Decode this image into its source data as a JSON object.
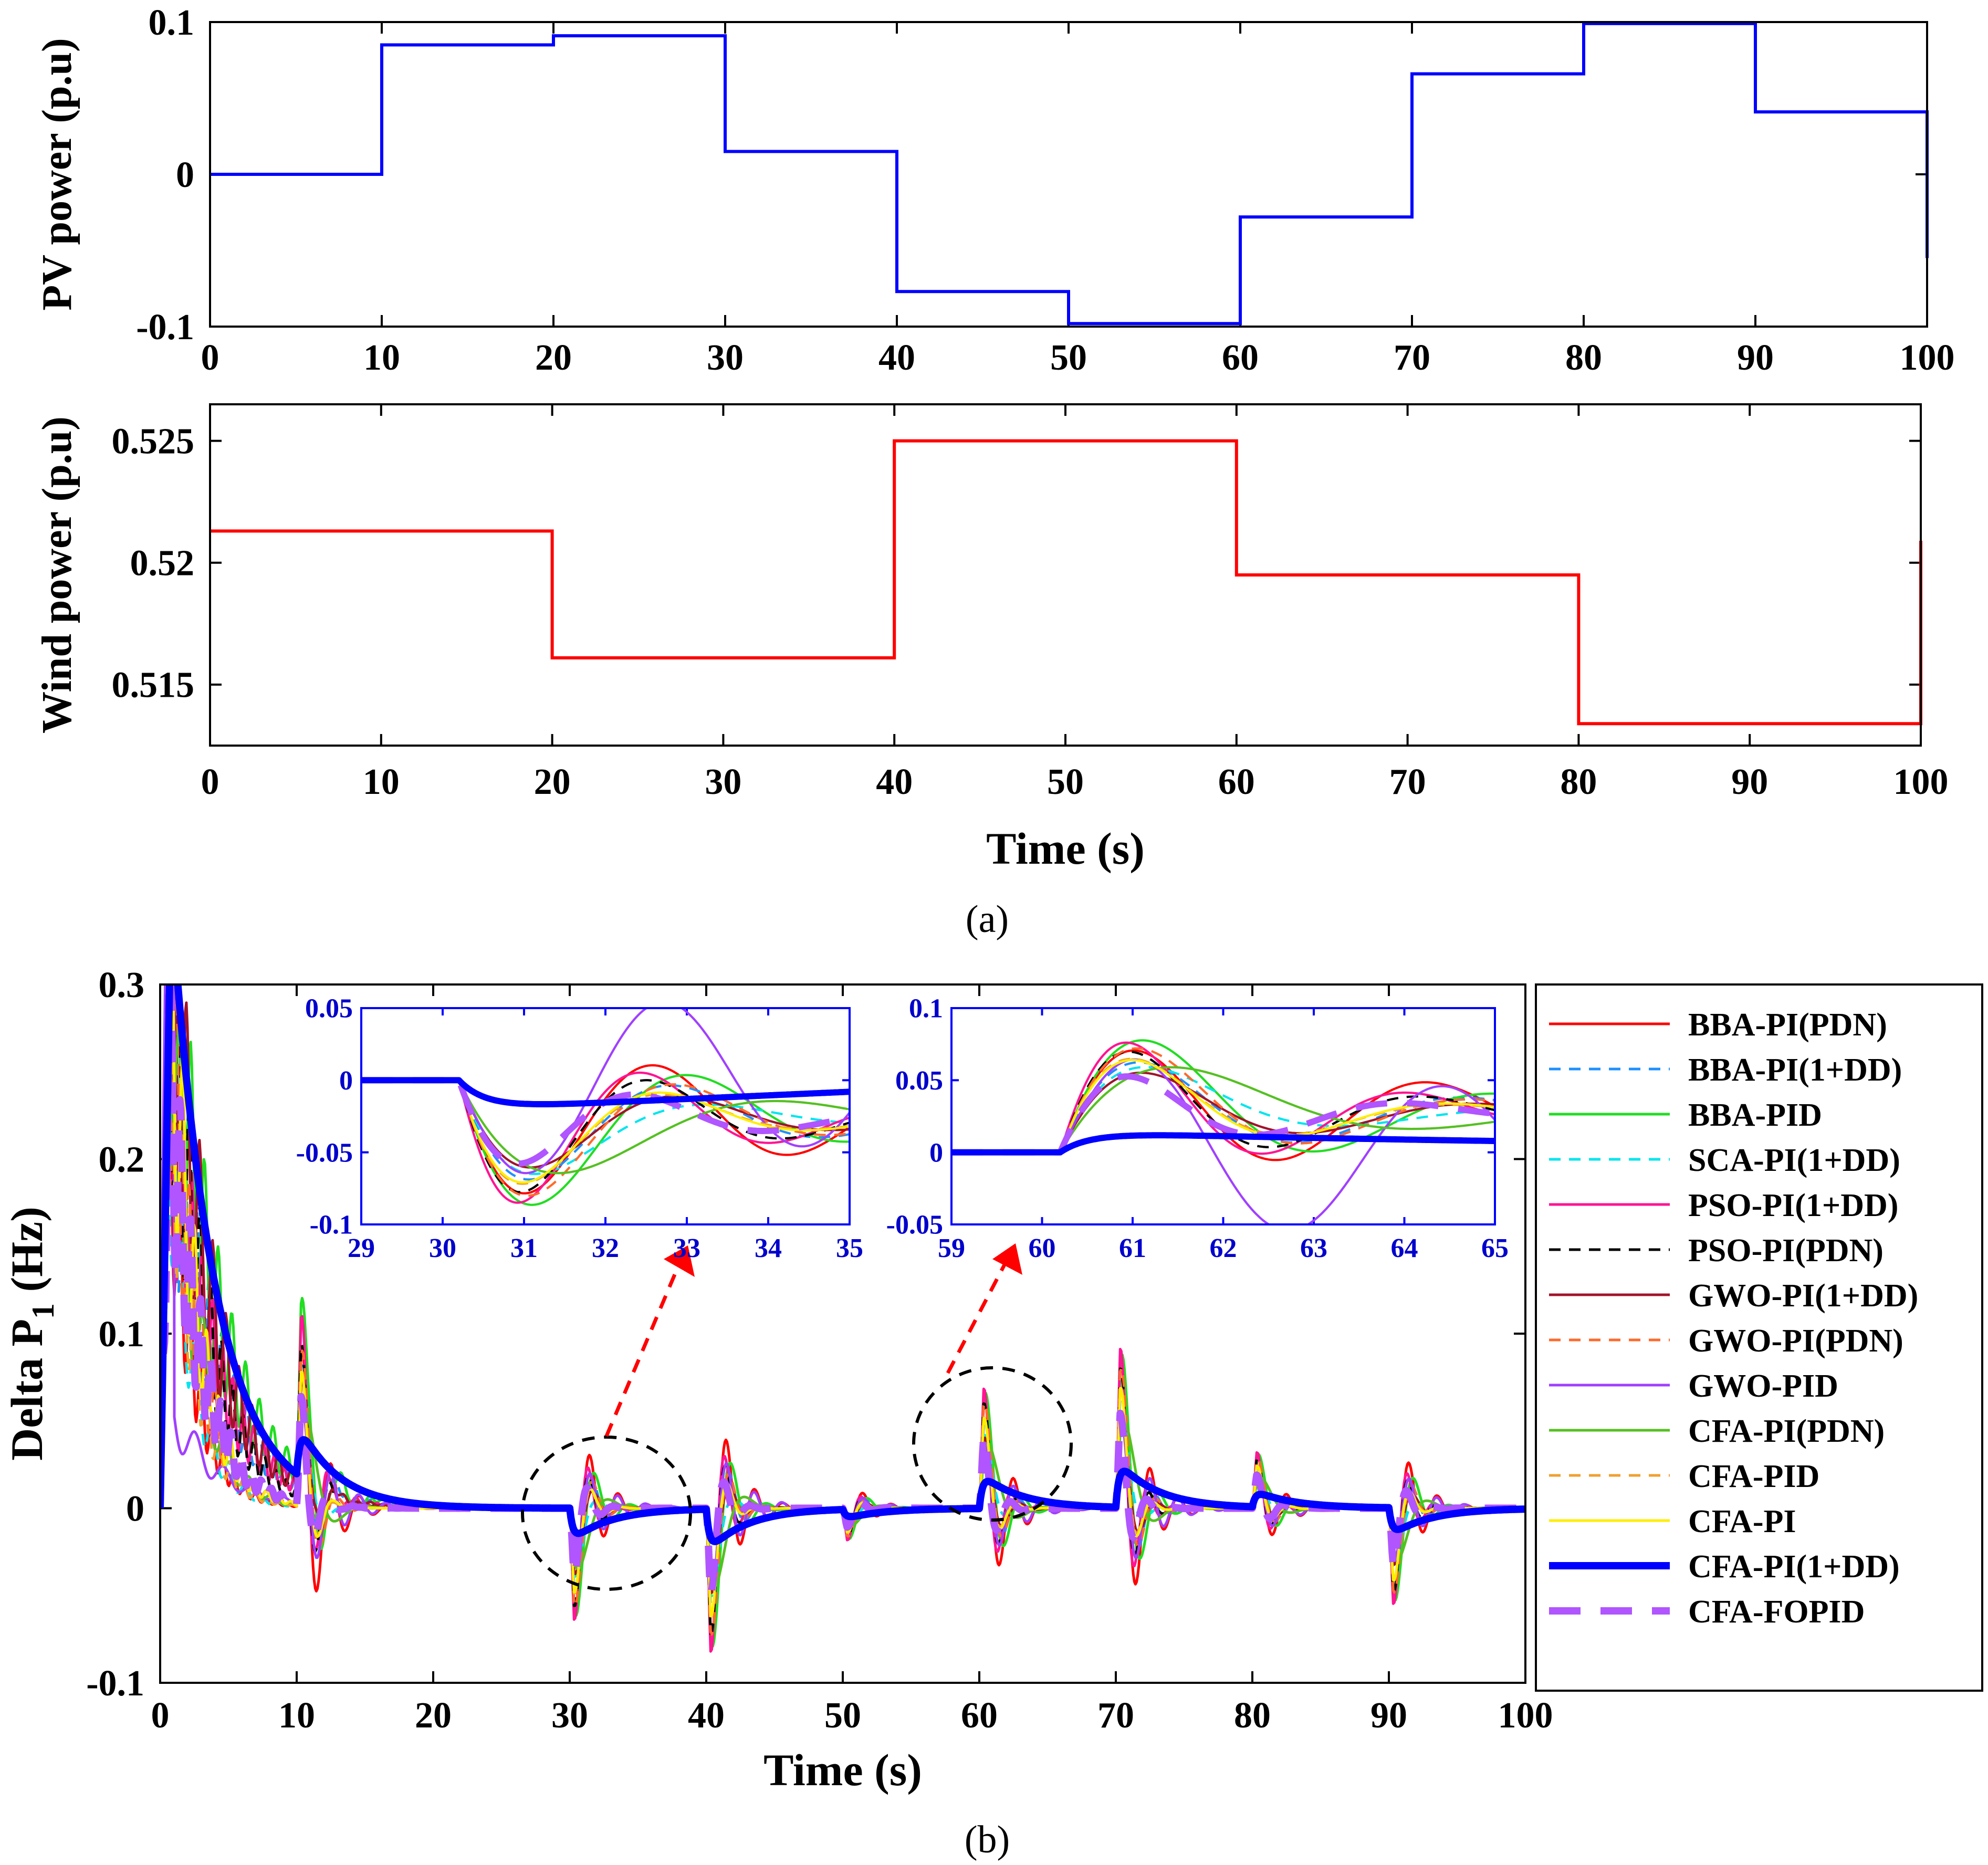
{
  "captions": {
    "a": "(a)",
    "b": "(b)"
  },
  "colors": {
    "pv": "#0000ff",
    "wind": "#ff0000",
    "inset_axis": "#0000ff",
    "arrow": "#ff0000",
    "circle": "#000000"
  },
  "chart_data": [
    {
      "id": "pv",
      "type": "line",
      "step": true,
      "title": "",
      "xlabel": "",
      "ylabel": "PV power (p.u)",
      "xlim": [
        0,
        100
      ],
      "ylim": [
        -0.1,
        0.1
      ],
      "xticks": [
        0,
        10,
        20,
        30,
        40,
        50,
        60,
        70,
        80,
        90,
        100
      ],
      "yticks": [
        -0.1,
        0,
        0.1
      ],
      "ytick_labels": [
        "-0.1",
        "0",
        "0.1"
      ],
      "series": [
        {
          "name": "PV power",
          "color": "#0000ff",
          "x": [
            0,
            10,
            20,
            30,
            40,
            50,
            60,
            70,
            80,
            90,
            100
          ],
          "y": [
            0,
            0.085,
            0.091,
            0.015,
            -0.077,
            -0.098,
            -0.028,
            0.066,
            0.099,
            0.041,
            -0.055
          ]
        }
      ]
    },
    {
      "id": "wind",
      "type": "line",
      "step": true,
      "title": "",
      "xlabel": "Time (s)",
      "ylabel": "Wind power (p.u)",
      "xlim": [
        0,
        100
      ],
      "ylim": [
        0.5125,
        0.5265
      ],
      "xticks": [
        0,
        10,
        20,
        30,
        40,
        50,
        60,
        70,
        80,
        90,
        100
      ],
      "yticks": [
        0.515,
        0.52,
        0.525
      ],
      "ytick_labels": [
        "0.515",
        "0.52",
        "0.525"
      ],
      "series": [
        {
          "name": "Wind power",
          "color": "#ff0000",
          "x": [
            0,
            20,
            40,
            60,
            80,
            100
          ],
          "y": [
            0.5213,
            0.5161,
            0.525,
            0.5195,
            0.5134,
            0.5209
          ]
        }
      ]
    },
    {
      "id": "delta",
      "type": "line",
      "title": "",
      "xlabel": "Time (s)",
      "ylabel": "Delta P1 (Hz)",
      "ylabel_main": "Delta P",
      "ylabel_sub": "1",
      "ylabel_tail": " (Hz)",
      "xlim": [
        0,
        100
      ],
      "ylim": [
        -0.1,
        0.3
      ],
      "xticks": [
        0,
        10,
        20,
        30,
        40,
        50,
        60,
        70,
        80,
        90,
        100
      ],
      "yticks": [
        -0.1,
        0,
        0.1,
        0.2,
        0.3
      ],
      "ytick_labels": [
        "-0.1",
        "0",
        "0.1",
        "0.2",
        "0.3"
      ],
      "legend_position": "right-outside",
      "legend": [
        {
          "name": "BBA-PI(PDN)",
          "color": "#ff0000",
          "dash": "solid",
          "width": 5
        },
        {
          "name": "BBA-PI(1+DD)",
          "color": "#1e90ff",
          "dash": "dashed",
          "width": 5
        },
        {
          "name": "BBA-PID",
          "color": "#22dd22",
          "dash": "solid",
          "width": 5
        },
        {
          "name": "SCA-PI(1+DD)",
          "color": "#00e5ee",
          "dash": "dashed",
          "width": 5
        },
        {
          "name": "PSO-PI(1+DD)",
          "color": "#ff1493",
          "dash": "solid",
          "width": 5
        },
        {
          "name": "PSO-PI(PDN)",
          "color": "#000000",
          "dash": "dashed",
          "width": 5
        },
        {
          "name": "GWO-PI(1+DD)",
          "color": "#a0142a",
          "dash": "solid",
          "width": 5
        },
        {
          "name": "GWO-PI(PDN)",
          "color": "#ff6a2a",
          "dash": "dashed",
          "width": 5
        },
        {
          "name": "GWO-PID",
          "color": "#a040ff",
          "dash": "solid",
          "width": 5
        },
        {
          "name": "CFA-PI(PDN)",
          "color": "#55c022",
          "dash": "solid",
          "width": 5
        },
        {
          "name": "CFA-PID",
          "color": "#f0a030",
          "dash": "dashed",
          "width": 5
        },
        {
          "name": "CFA-PI",
          "color": "#ffee00",
          "dash": "solid",
          "width": 5
        },
        {
          "name": "CFA-PI(1+DD)",
          "color": "#0000ff",
          "dash": "solid",
          "width": 14
        },
        {
          "name": "CFA-FOPID",
          "color": "#b055ff",
          "dash": "bigdash",
          "width": 14
        }
      ],
      "disturbance_times": [
        10,
        30,
        40,
        50,
        60,
        70,
        80,
        90
      ],
      "events": [
        {
          "t": 10,
          "amp": 0.11
        },
        {
          "t": 30,
          "amp": -0.07
        },
        {
          "t": 40,
          "amp": -0.09
        },
        {
          "t": 50,
          "amp": -0.02
        },
        {
          "t": 60,
          "amp": 0.075
        },
        {
          "t": 70,
          "amp": 0.1
        },
        {
          "t": 80,
          "amp": 0.035
        },
        {
          "t": 90,
          "amp": -0.06
        }
      ],
      "insets": [
        {
          "id": "inset1",
          "xlim": [
            29,
            35
          ],
          "ylim": [
            -0.1,
            0.05
          ],
          "xticks": [
            29,
            30,
            31,
            32,
            33,
            34,
            35
          ],
          "yticks": [
            -0.1,
            -0.05,
            0,
            0.05
          ],
          "ytick_labels": [
            "-0.1",
            "-0.05",
            "0",
            "0.05"
          ],
          "event_t": 30,
          "event_dir": -1,
          "blue_peak": -0.02
        },
        {
          "id": "inset2",
          "xlim": [
            59,
            65
          ],
          "ylim": [
            -0.05,
            0.1
          ],
          "xticks": [
            59,
            60,
            61,
            62,
            63,
            64,
            65
          ],
          "yticks": [
            -0.05,
            0,
            0.05,
            0.1
          ],
          "ytick_labels": [
            "-0.05",
            "0",
            "0.05",
            "0.1"
          ],
          "event_t": 60,
          "event_dir": 1,
          "blue_peak": 0.014
        }
      ]
    }
  ]
}
